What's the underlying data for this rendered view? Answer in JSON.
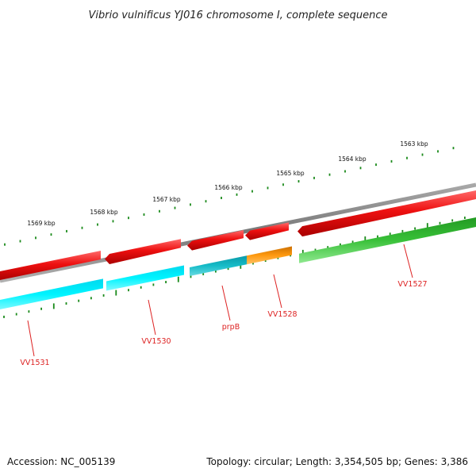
{
  "title": "Vibrio vulnificus YJ016 chromosome I, complete sequence",
  "accession": "Accession: NC_005139",
  "topology": "Topology: circular; Length: 3,354,505 bp; Genes: 3,386",
  "colors": {
    "backbone": "#808080",
    "tick": "#1a8a1a",
    "label": "#dd2222",
    "forward_gene": "#ee1111",
    "reverse_gene_a": "#00eeff",
    "reverse_gene_b": "#11bbcc",
    "reverse_gene_c": "#ff9900",
    "reverse_gene_d": "#33bb33"
  },
  "ticks": [
    {
      "label": "1563 kbp"
    },
    {
      "label": "1564 kbp"
    },
    {
      "label": "1565 kbp"
    },
    {
      "label": "1566 kbp"
    },
    {
      "label": "1567 kbp"
    },
    {
      "label": "1568 kbp"
    },
    {
      "label": "1569 kbp"
    }
  ],
  "gene_labels": [
    {
      "text": "VV1527"
    },
    {
      "text": "VV1528"
    },
    {
      "text": "prpB"
    },
    {
      "text": "VV1530"
    },
    {
      "text": "VV1531"
    }
  ]
}
